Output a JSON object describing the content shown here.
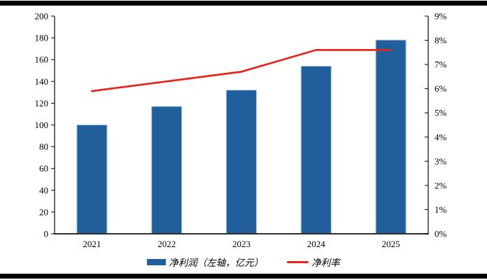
{
  "figure": {
    "background": "#ffffff",
    "rule_color": "#000000"
  },
  "legend": {
    "items": [
      {
        "label": "净利润（左轴，亿元）",
        "swatch": "bar-swatch",
        "color": "#215E9C"
      },
      {
        "label": "净利率",
        "swatch": "line-swatch",
        "color": "#E8231A"
      }
    ]
  },
  "chart_data": {
    "type": "combo",
    "categories": [
      "2021",
      "2022",
      "2023",
      "2024",
      "2025"
    ],
    "series": [
      {
        "name": "净利润（左轴，亿元）",
        "type": "bar",
        "axis": "left",
        "color": "#215E9C",
        "edge_color": "#A6C3DE",
        "values": [
          100,
          117,
          132,
          154,
          178
        ]
      },
      {
        "name": "净利率",
        "type": "line",
        "axis": "right",
        "color": "#E8231A",
        "values": [
          5.9,
          6.3,
          6.7,
          7.6,
          7.6
        ]
      }
    ],
    "left_axis": {
      "min": 0,
      "max": 200,
      "step": 20,
      "tick_labels": [
        "0",
        "20",
        "40",
        "60",
        "80",
        "100",
        "120",
        "140",
        "160",
        "180",
        "200"
      ]
    },
    "right_axis": {
      "min": 0,
      "max": 9,
      "step": 1,
      "tick_labels": [
        "0%",
        "1%",
        "2%",
        "3%",
        "4%",
        "5%",
        "6%",
        "7%",
        "8%",
        "9%"
      ]
    },
    "grid": false,
    "legend_position": "bottom",
    "title": "",
    "xlabel": "",
    "ylabel": ""
  }
}
